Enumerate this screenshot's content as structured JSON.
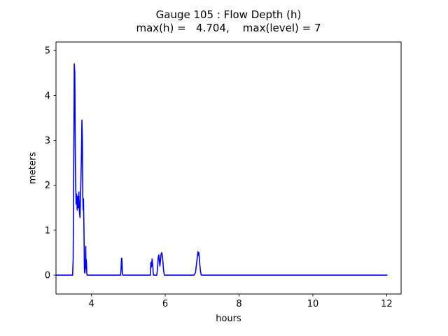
{
  "figure": {
    "title": "Gauge 105 : Flow Depth (h)",
    "subtitle": "max(h) =   4.704,    max(level) = 7"
  },
  "chart_data": {
    "type": "line",
    "title": "Gauge 105 : Flow Depth (h)",
    "subtitle": "max(h) =   4.704,    max(level) = 7",
    "xlabel": "hours",
    "ylabel": "meters",
    "xlim": [
      3.04,
      12.39
    ],
    "ylim": [
      -0.42,
      5.19
    ],
    "xticks": [
      4,
      6,
      8,
      10,
      12
    ],
    "yticks": [
      0,
      1,
      2,
      3,
      4,
      5
    ],
    "grid": false,
    "legend": false,
    "line_color": "#0000ff",
    "axis_color": "#000000",
    "max_h": 4.704,
    "max_level": 7,
    "series": [
      {
        "name": "h",
        "points": [
          [
            3.04,
            0
          ],
          [
            3.49,
            0
          ],
          [
            3.505,
            0.35
          ],
          [
            3.52,
            2.3
          ],
          [
            3.535,
            4.704
          ],
          [
            3.55,
            4.5
          ],
          [
            3.565,
            2.5
          ],
          [
            3.575,
            1.95
          ],
          [
            3.585,
            1.58
          ],
          [
            3.6,
            1.8
          ],
          [
            3.615,
            1.45
          ],
          [
            3.63,
            1.75
          ],
          [
            3.645,
            1.5
          ],
          [
            3.66,
            1.85
          ],
          [
            3.675,
            1.42
          ],
          [
            3.69,
            1.28
          ],
          [
            3.7,
            1.6
          ],
          [
            3.715,
            2.1
          ],
          [
            3.73,
            2.7
          ],
          [
            3.742,
            3.45
          ],
          [
            3.755,
            3.0
          ],
          [
            3.765,
            1.8
          ],
          [
            3.775,
            1.45
          ],
          [
            3.785,
            1.7
          ],
          [
            3.792,
            1.3
          ],
          [
            3.8,
            0.9
          ],
          [
            3.806,
            0.35
          ],
          [
            3.812,
            0.06
          ],
          [
            3.826,
            0.05
          ],
          [
            3.838,
            0.3
          ],
          [
            3.845,
            0.64
          ],
          [
            3.852,
            0.15
          ],
          [
            3.858,
            0.35
          ],
          [
            3.866,
            0.28
          ],
          [
            3.875,
            0.04
          ],
          [
            3.885,
            0
          ],
          [
            4.79,
            0
          ],
          [
            4.8,
            0.08
          ],
          [
            4.815,
            0.38
          ],
          [
            4.825,
            0.37
          ],
          [
            4.838,
            0.06
          ],
          [
            4.85,
            0
          ],
          [
            5.595,
            0
          ],
          [
            5.61,
            0.28
          ],
          [
            5.625,
            0.18
          ],
          [
            5.645,
            0.36
          ],
          [
            5.66,
            0.24
          ],
          [
            5.672,
            0.05
          ],
          [
            5.685,
            0
          ],
          [
            5.77,
            0
          ],
          [
            5.79,
            0.14
          ],
          [
            5.81,
            0.4
          ],
          [
            5.828,
            0.45
          ],
          [
            5.843,
            0.3
          ],
          [
            5.855,
            0.2
          ],
          [
            5.872,
            0.34
          ],
          [
            5.89,
            0.48
          ],
          [
            5.906,
            0.5
          ],
          [
            5.92,
            0.44
          ],
          [
            5.938,
            0.28
          ],
          [
            5.955,
            0.1
          ],
          [
            5.975,
            0
          ],
          [
            6.78,
            0
          ],
          [
            6.82,
            0.06
          ],
          [
            6.86,
            0.34
          ],
          [
            6.885,
            0.52
          ],
          [
            6.9,
            0.44
          ],
          [
            6.912,
            0.5
          ],
          [
            6.93,
            0.3
          ],
          [
            6.952,
            0.1
          ],
          [
            6.975,
            0
          ],
          [
            12.02,
            0
          ]
        ]
      }
    ]
  }
}
